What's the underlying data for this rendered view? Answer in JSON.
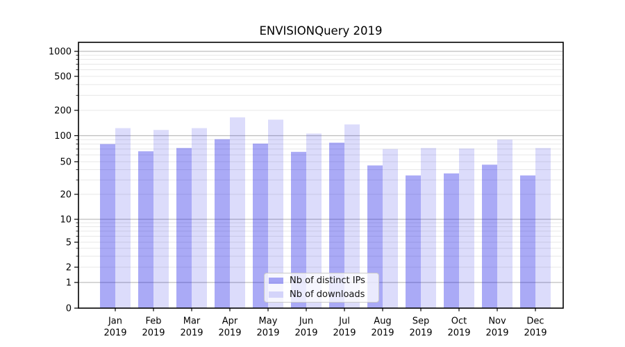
{
  "chart_data": {
    "type": "bar",
    "title": "ENVISIONQuery 2019",
    "xlabel": "",
    "ylabel": "",
    "x_year": "2019",
    "categories": [
      "Jan",
      "Feb",
      "Mar",
      "Apr",
      "May",
      "Jun",
      "Jul",
      "Aug",
      "Sep",
      "Oct",
      "Nov",
      "Dec"
    ],
    "series": [
      {
        "name": "Nb of distinct IPs",
        "color": "rgba(20,20,230,0.36)",
        "values": [
          80,
          66,
          72,
          91,
          81,
          65,
          83,
          45,
          34,
          36,
          46,
          34
        ]
      },
      {
        "name": "Nb of downloads",
        "color": "rgba(20,20,230,0.15)",
        "values": [
          123,
          117,
          123,
          165,
          155,
          106,
          136,
          70,
          72,
          71,
          90,
          72
        ]
      }
    ],
    "y_axis": {
      "scale": "log-like (linear below 1)",
      "tick_labels": [
        "1000",
        "500",
        "200",
        "100",
        "50",
        "20",
        "10",
        "5",
        "2",
        "1",
        "0"
      ],
      "tick_values": [
        1000,
        500,
        200,
        100,
        50,
        20,
        10,
        5,
        2,
        1,
        0
      ],
      "decade_values": [
        1,
        10,
        100,
        1000
      ],
      "minor_values": [
        3,
        4,
        6,
        7,
        8,
        9,
        30,
        40,
        60,
        70,
        80,
        90,
        300,
        400,
        600,
        700,
        800,
        900
      ],
      "ylim_bottom": 0
    },
    "grid": true,
    "legend_position": "lower center",
    "colors": {
      "axis": "#000000",
      "grid_decade": "#bdbdbd",
      "grid_minor": "#e7e7e7",
      "legend_border": "#c9c9c9",
      "background": "#ffffff"
    }
  }
}
